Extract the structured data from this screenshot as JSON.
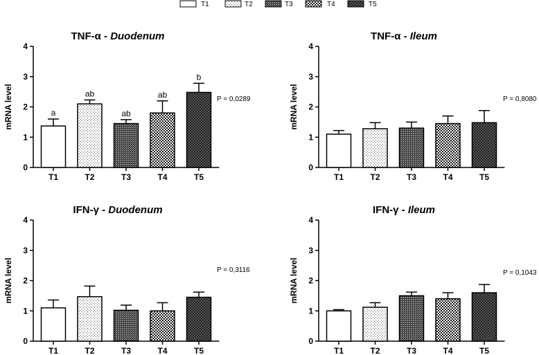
{
  "legend": {
    "items": [
      {
        "label": "T1",
        "pattern": "white"
      },
      {
        "label": "T2",
        "pattern": "dots-sparse"
      },
      {
        "label": "T3",
        "pattern": "cross-dark"
      },
      {
        "label": "T4",
        "pattern": "checker"
      },
      {
        "label": "T5",
        "pattern": "dark-checker"
      }
    ]
  },
  "chart_data": [
    {
      "type": "bar",
      "panel": "top-left",
      "title": {
        "main": "TNF-α",
        "sep": " - ",
        "tissue": "Duodenum"
      },
      "ylabel": "mRNA level",
      "categories": [
        "T1",
        "T2",
        "T3",
        "T4",
        "T5"
      ],
      "values": [
        1.37,
        2.1,
        1.45,
        1.8,
        2.48
      ],
      "errors": [
        0.23,
        0.13,
        0.13,
        0.4,
        0.3
      ],
      "letters": [
        "a",
        "ab",
        "ab",
        "ab",
        "b"
      ],
      "ylim": [
        0,
        4
      ],
      "yticks": [
        "0",
        "1",
        "2",
        "3",
        "4"
      ],
      "pvalue": "P = 0,0289"
    },
    {
      "type": "bar",
      "panel": "top-right",
      "title": {
        "main": "TNF-α",
        "sep": " - ",
        "tissue": "Ileum"
      },
      "ylabel": "mRNA level",
      "categories": [
        "T1",
        "T2",
        "T3",
        "T4",
        "T5"
      ],
      "values": [
        1.1,
        1.28,
        1.3,
        1.45,
        1.48
      ],
      "errors": [
        0.12,
        0.2,
        0.2,
        0.25,
        0.4
      ],
      "letters": [],
      "ylim": [
        0,
        4
      ],
      "yticks": [
        "0",
        "1",
        "2",
        "3",
        "4"
      ],
      "pvalue": "P = 0,8080"
    },
    {
      "type": "bar",
      "panel": "bottom-left",
      "title": {
        "main": "IFN-γ",
        "sep": " - ",
        "tissue": "Duodenum"
      },
      "ylabel": "mRNA level",
      "categories": [
        "T1",
        "T2",
        "T3",
        "T4",
        "T5"
      ],
      "values": [
        1.1,
        1.47,
        1.02,
        1.0,
        1.45
      ],
      "errors": [
        0.26,
        0.35,
        0.17,
        0.27,
        0.17
      ],
      "letters": [],
      "ylim": [
        0,
        4
      ],
      "yticks": [
        "0",
        "1",
        "2",
        "3",
        "4"
      ],
      "pvalue": "P = 0,3116"
    },
    {
      "type": "bar",
      "panel": "bottom-right",
      "title": {
        "main": "IFN-γ",
        "sep": " - ",
        "tissue": "Ileum"
      },
      "ylabel": "mRNA level",
      "categories": [
        "T1",
        "T2",
        "T3",
        "T4",
        "T5"
      ],
      "values": [
        1.0,
        1.12,
        1.5,
        1.4,
        1.6
      ],
      "errors": [
        0.04,
        0.15,
        0.12,
        0.2,
        0.27
      ],
      "letters": [],
      "ylim": [
        0,
        4
      ],
      "yticks": [
        "0",
        "1",
        "2",
        "3",
        "4"
      ],
      "pvalue": "P = 0,1043"
    }
  ]
}
